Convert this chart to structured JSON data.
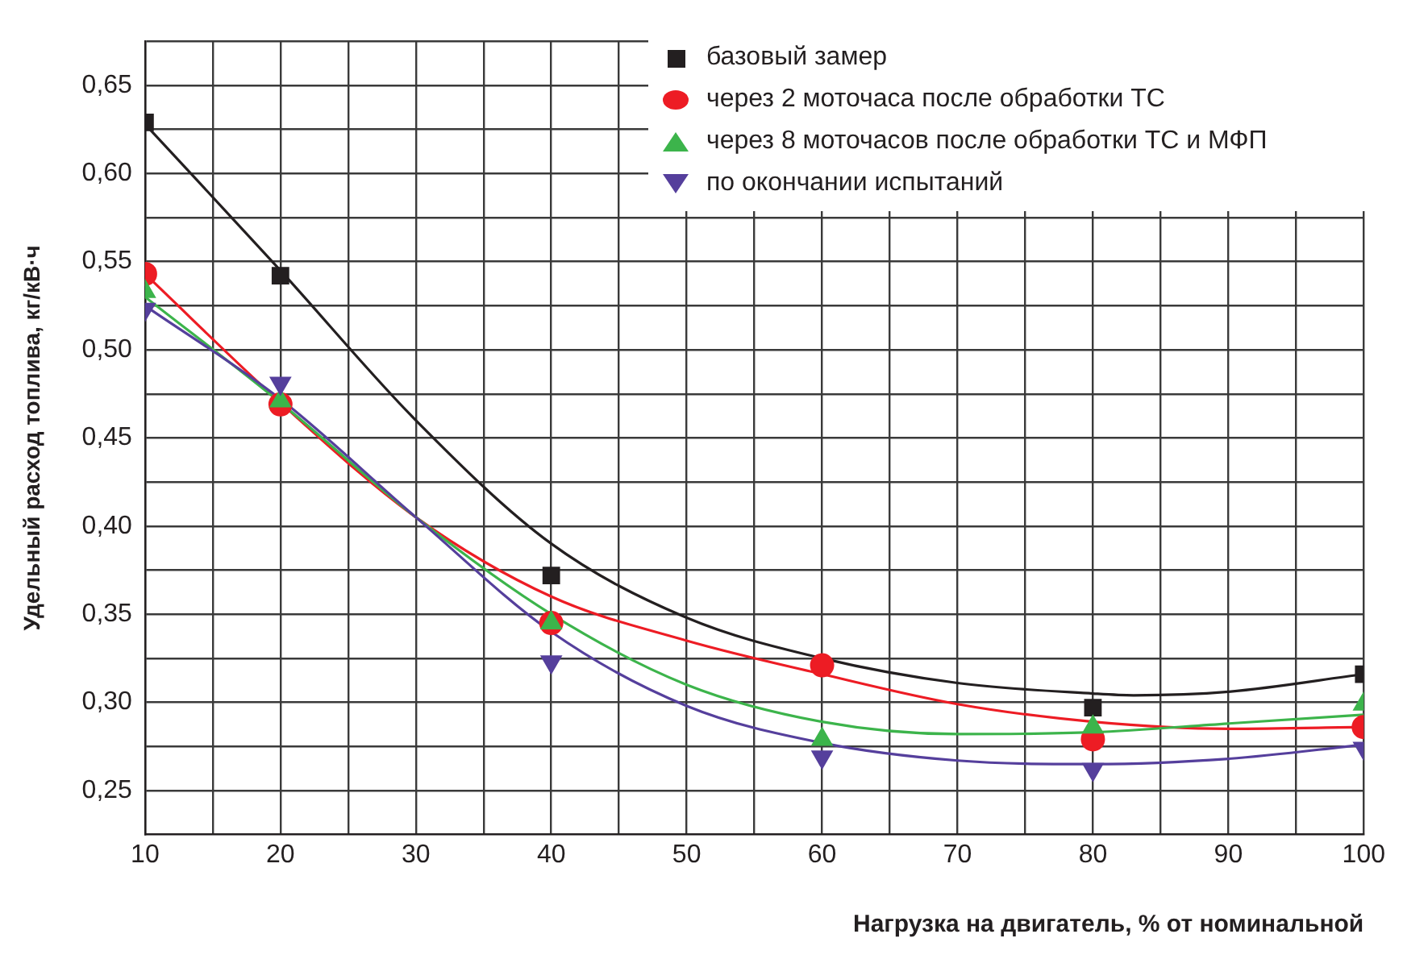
{
  "chart_data": {
    "type": "scatter",
    "xlabel": "Нагрузка на двигатель, % от номинальной",
    "ylabel": "Удельный расход топлива, кг/кВ·ч",
    "xlim": [
      10,
      100
    ],
    "xticks": [
      10,
      {
        "value": 15,
        "label": null
      },
      20,
      {
        "value": 25,
        "label": null
      },
      30,
      {
        "value": 35,
        "label": null
      },
      40,
      {
        "value": 45,
        "label": null
      },
      50,
      {
        "value": 55,
        "label": null
      },
      60,
      {
        "value": 65,
        "label": null
      },
      70,
      {
        "value": 75,
        "label": null
      },
      80,
      {
        "value": 85,
        "label": null
      },
      90,
      {
        "value": 95,
        "label": null
      },
      100
    ],
    "ylim": [
      0.225,
      0.675
    ],
    "yticks": [
      {
        "value": 0.25,
        "label": "0,25"
      },
      {
        "value": 0.275,
        "label": null
      },
      {
        "value": 0.3,
        "label": "0,30"
      },
      {
        "value": 0.325,
        "label": null
      },
      {
        "value": 0.35,
        "label": "0,35"
      },
      {
        "value": 0.375,
        "label": null
      },
      {
        "value": 0.4,
        "label": "0,40"
      },
      {
        "value": 0.425,
        "label": null
      },
      {
        "value": 0.45,
        "label": "0,45"
      },
      {
        "value": 0.475,
        "label": null
      },
      {
        "value": 0.5,
        "label": "0,50"
      },
      {
        "value": 0.525,
        "label": null
      },
      {
        "value": 0.55,
        "label": "0,55"
      },
      {
        "value": 0.575,
        "label": null
      },
      {
        "value": 0.6,
        "label": "0,60"
      },
      {
        "value": 0.625,
        "label": null
      },
      {
        "value": 0.65,
        "label": "0,65"
      },
      {
        "value": 0.675,
        "label": null
      }
    ],
    "grid": true,
    "legend": "top right",
    "series": [
      {
        "type": "line",
        "marker": "none",
        "color": "#231f20",
        "x": [
          10,
          20,
          30,
          40,
          50,
          60,
          70,
          80,
          83,
          90,
          100
        ],
        "values": [
          0.628,
          0.545,
          0.46,
          0.39,
          0.348,
          0.325,
          0.311,
          0.305,
          0.304,
          0.306,
          0.316
        ]
      },
      {
        "type": "line",
        "marker": "none",
        "color": "#ed1c24",
        "x": [
          10,
          20,
          30,
          40,
          50,
          60,
          70,
          80,
          90,
          100
        ],
        "values": [
          0.543,
          0.47,
          0.405,
          0.36,
          0.335,
          0.316,
          0.299,
          0.289,
          0.285,
          0.286
        ]
      },
      {
        "type": "line",
        "marker": "none",
        "color": "#3cb44b",
        "x": [
          10,
          20,
          30,
          40,
          50,
          60,
          70,
          80,
          90,
          100
        ],
        "values": [
          0.53,
          0.47,
          0.405,
          0.35,
          0.31,
          0.289,
          0.282,
          0.283,
          0.288,
          0.293
        ]
      },
      {
        "type": "line",
        "marker": "none",
        "color": "#553f9c",
        "x": [
          10,
          20,
          30,
          40,
          50,
          60,
          70,
          80,
          90,
          100
        ],
        "values": [
          0.525,
          0.472,
          0.405,
          0.34,
          0.298,
          0.277,
          0.267,
          0.265,
          0.268,
          0.276
        ]
      },
      {
        "type": "scatter",
        "name": "базовый замер",
        "marker": "square",
        "color": "#231f20",
        "x": [
          10,
          20,
          40,
          80,
          100
        ],
        "values": [
          0.629,
          0.542,
          0.372,
          0.297,
          0.316
        ]
      },
      {
        "type": "scatter",
        "name": "через 2 моточаса после обработки ТС",
        "marker": "circle",
        "color": "#ed1c24",
        "x": [
          10,
          20,
          40,
          60,
          80,
          100
        ],
        "values": [
          0.543,
          0.469,
          0.345,
          0.321,
          0.279,
          0.286
        ]
      },
      {
        "type": "scatter",
        "name": "через 8 моточасов после обработки ТС и МФП",
        "marker": "triangle",
        "color": "#3cb44b",
        "x": [
          10,
          20,
          40,
          60,
          80,
          100
        ],
        "values": [
          0.533,
          0.471,
          0.345,
          0.279,
          0.286,
          0.299
        ]
      },
      {
        "type": "scatter",
        "name": "по окончании испытаний",
        "marker": "triangle-down",
        "color": "#553f9c",
        "x": [
          10,
          20,
          40,
          60,
          80,
          100
        ],
        "values": [
          0.523,
          0.481,
          0.323,
          0.269,
          0.262,
          0.274
        ]
      }
    ]
  }
}
